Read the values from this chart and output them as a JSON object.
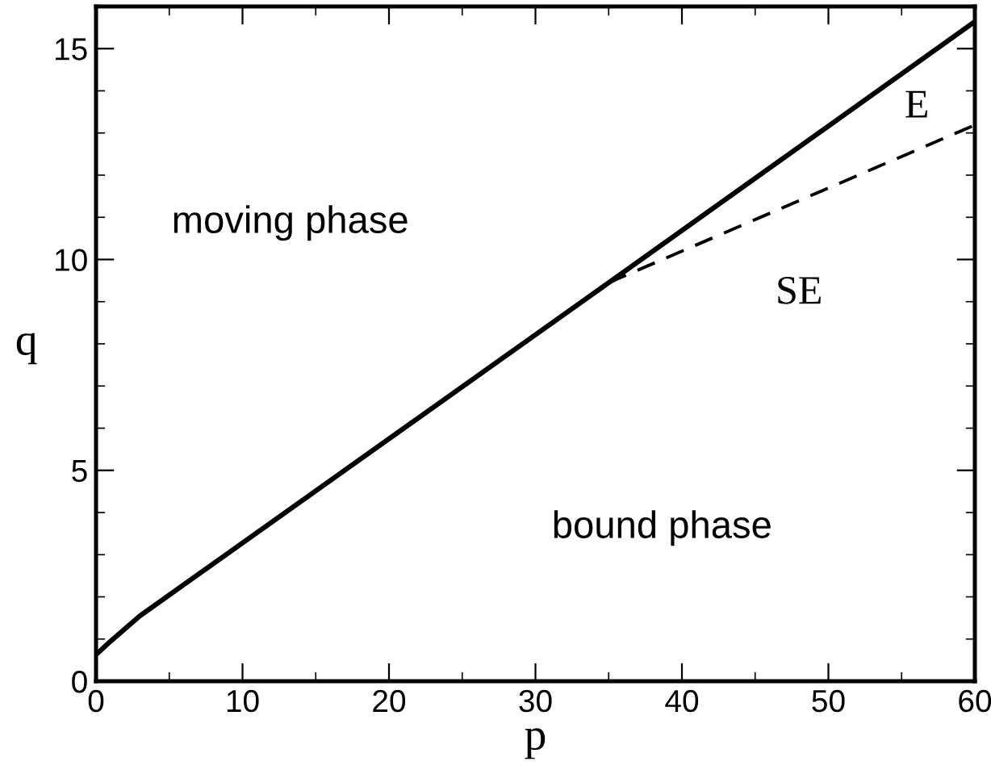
{
  "chart_data": {
    "type": "line",
    "xlabel": "p",
    "ylabel": "q",
    "xlim": [
      0,
      60
    ],
    "ylim": [
      0,
      16
    ],
    "xticks": [
      0,
      10,
      20,
      30,
      40,
      50,
      60
    ],
    "yticks": [
      0,
      5,
      10,
      15
    ],
    "grid": false,
    "legend": false,
    "marker": "none",
    "series": [
      {
        "color": "#000000",
        "line_style": "solid",
        "x": [
          0,
          1,
          3,
          35,
          60
        ],
        "values": [
          0.63,
          0.95,
          1.55,
          9.45,
          15.64
        ]
      },
      {
        "color": "#000000",
        "line_style": "dashed",
        "x": [
          35,
          60
        ],
        "values": [
          9.45,
          13.19
        ]
      }
    ],
    "annotations": [
      "moving phase",
      "E",
      "SE",
      "bound phase"
    ]
  }
}
